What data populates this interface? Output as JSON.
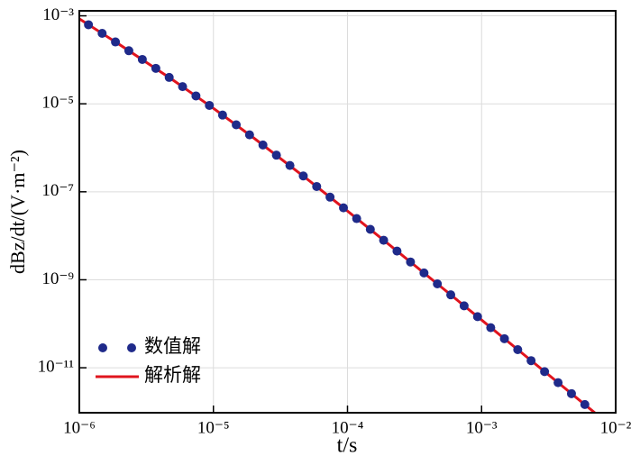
{
  "chart_data": {
    "type": "scatter-line",
    "x_label": "t/s",
    "y_label": "dBz/dt/(V·m⁻²)",
    "x_log": true,
    "y_log": true,
    "grid": true,
    "legend_loc": "lower left",
    "xlim": [
      1e-06,
      0.01
    ],
    "ylim": [
      0.0013,
      9.5e-13
    ],
    "xticks": [
      {
        "value": 1e-06,
        "label": "10⁻⁶"
      },
      {
        "value": 1e-05,
        "label": "10⁻⁵"
      },
      {
        "value": 0.0001,
        "label": "10⁻⁴"
      },
      {
        "value": 0.001,
        "label": "10⁻³"
      },
      {
        "value": 0.01,
        "label": "10⁻²"
      }
    ],
    "yticks": [
      {
        "value": 0.001,
        "label": "10⁻³"
      },
      {
        "value": 1e-05,
        "label": "10⁻⁵"
      },
      {
        "value": 1e-07,
        "label": "10⁻⁷"
      },
      {
        "value": 1e-09,
        "label": "10⁻⁹"
      },
      {
        "value": 1e-11,
        "label": "10⁻¹¹"
      }
    ],
    "series": [
      {
        "name": "数值解",
        "kind": "points",
        "color": "#1f2a8a",
        "x": [
          1.17e-06,
          1.48e-06,
          1.86e-06,
          2.34e-06,
          2.95e-06,
          3.72e-06,
          4.68e-06,
          5.89e-06,
          7.41e-06,
          9.33e-06,
          1.17e-05,
          1.48e-05,
          1.86e-05,
          2.34e-05,
          2.95e-05,
          3.72e-05,
          4.68e-05,
          5.89e-05,
          7.41e-05,
          9.33e-05,
          0.000117,
          0.000148,
          0.000186,
          0.000234,
          0.000295,
          0.000372,
          0.000468,
          0.000589,
          0.000741,
          0.000933,
          0.00117,
          0.00148,
          0.00186,
          0.00234,
          0.00295,
          0.00372,
          0.00468,
          0.00589
        ],
        "values": [
          0.000627,
          0.0004,
          0.000255,
          0.000161,
          0.000102,
          6.4e-05,
          3.98e-05,
          2.46e-05,
          1.51e-05,
          9.2e-06,
          5.55e-06,
          3.33e-06,
          1.97e-06,
          1.16e-06,
          6.81e-07,
          3.96e-07,
          2.29e-07,
          1.32e-07,
          7.55e-08,
          4.32e-08,
          2.46e-08,
          1.4e-08,
          7.93e-09,
          4.49e-09,
          2.54e-09,
          1.43e-09,
          8.07e-10,
          4.55e-10,
          2.56e-10,
          1.45e-10,
          8.15e-11,
          4.58e-11,
          2.58e-11,
          1.45e-11,
          8.17e-12,
          4.59e-12,
          2.58e-12,
          1.46e-12
        ]
      },
      {
        "name": "解析解",
        "kind": "line",
        "color": "#e0141e",
        "x": [
          1e-06,
          2e-06,
          5e-06,
          1e-05,
          2e-05,
          5e-05,
          0.0001,
          0.0002,
          0.0005,
          0.001,
          0.002,
          0.005,
          0.007
        ],
        "values": [
          0.000855,
          0.000221,
          3.46e-05,
          7.91e-06,
          1.67e-06,
          1.95e-07,
          3.65e-08,
          6.64e-09,
          6.84e-10,
          1.22e-10,
          2.16e-11,
          2.19e-12,
          9.44e-13
        ]
      }
    ]
  }
}
